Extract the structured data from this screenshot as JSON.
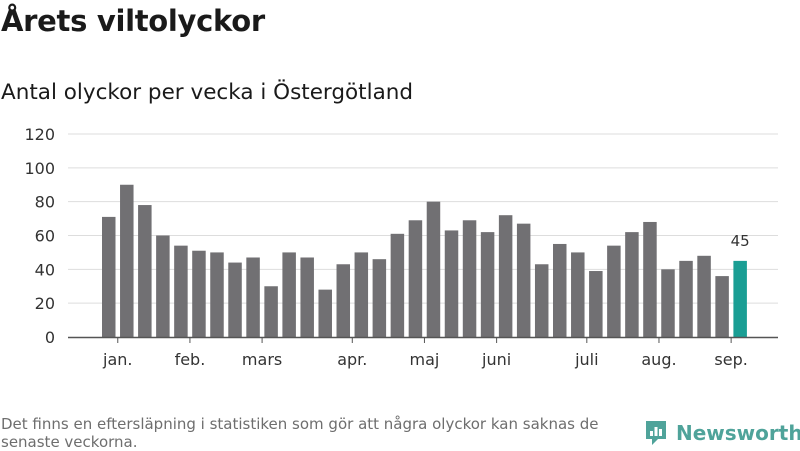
{
  "title": "Årets viltolyckor",
  "subtitle": "Antal olyckor per vecka i Östergötland",
  "footnote": "Det finns en eftersläpning i statistiken som gör att några olyckor kan saknas de senaste veckorna.",
  "brand": {
    "name": "Newsworthy",
    "icon": "newsworthy-logo-icon"
  },
  "colors": {
    "bar": "#717073",
    "highlight": "#1a9e94",
    "grid": "#dddddd",
    "axis": "#555555",
    "brand": "#4fa39a"
  },
  "chart_data": {
    "type": "bar",
    "title": "Antal olyckor per vecka i Östergötland",
    "xlabel": "",
    "ylabel": "",
    "ylim": [
      0,
      120
    ],
    "yticks": [
      0,
      20,
      40,
      60,
      80,
      100,
      120
    ],
    "grid": true,
    "values": [
      71,
      90,
      78,
      60,
      54,
      51,
      50,
      44,
      47,
      30,
      50,
      47,
      28,
      43,
      50,
      46,
      61,
      69,
      80,
      63,
      69,
      62,
      72,
      67,
      43,
      55,
      50,
      39,
      54,
      62,
      68,
      40,
      45,
      48,
      36,
      45
    ],
    "month_labels": [
      {
        "label": "jan.",
        "bar_index": 0.5
      },
      {
        "label": "feb.",
        "bar_index": 4.5
      },
      {
        "label": "mars",
        "bar_index": 8.5
      },
      {
        "label": "apr.",
        "bar_index": 13.5
      },
      {
        "label": "maj",
        "bar_index": 17.5
      },
      {
        "label": "juni",
        "bar_index": 21.5
      },
      {
        "label": "juli",
        "bar_index": 26.5
      },
      {
        "label": "aug.",
        "bar_index": 30.5
      },
      {
        "label": "sep.",
        "bar_index": 34.5
      }
    ],
    "highlight": {
      "index": 35,
      "label": "45"
    }
  }
}
